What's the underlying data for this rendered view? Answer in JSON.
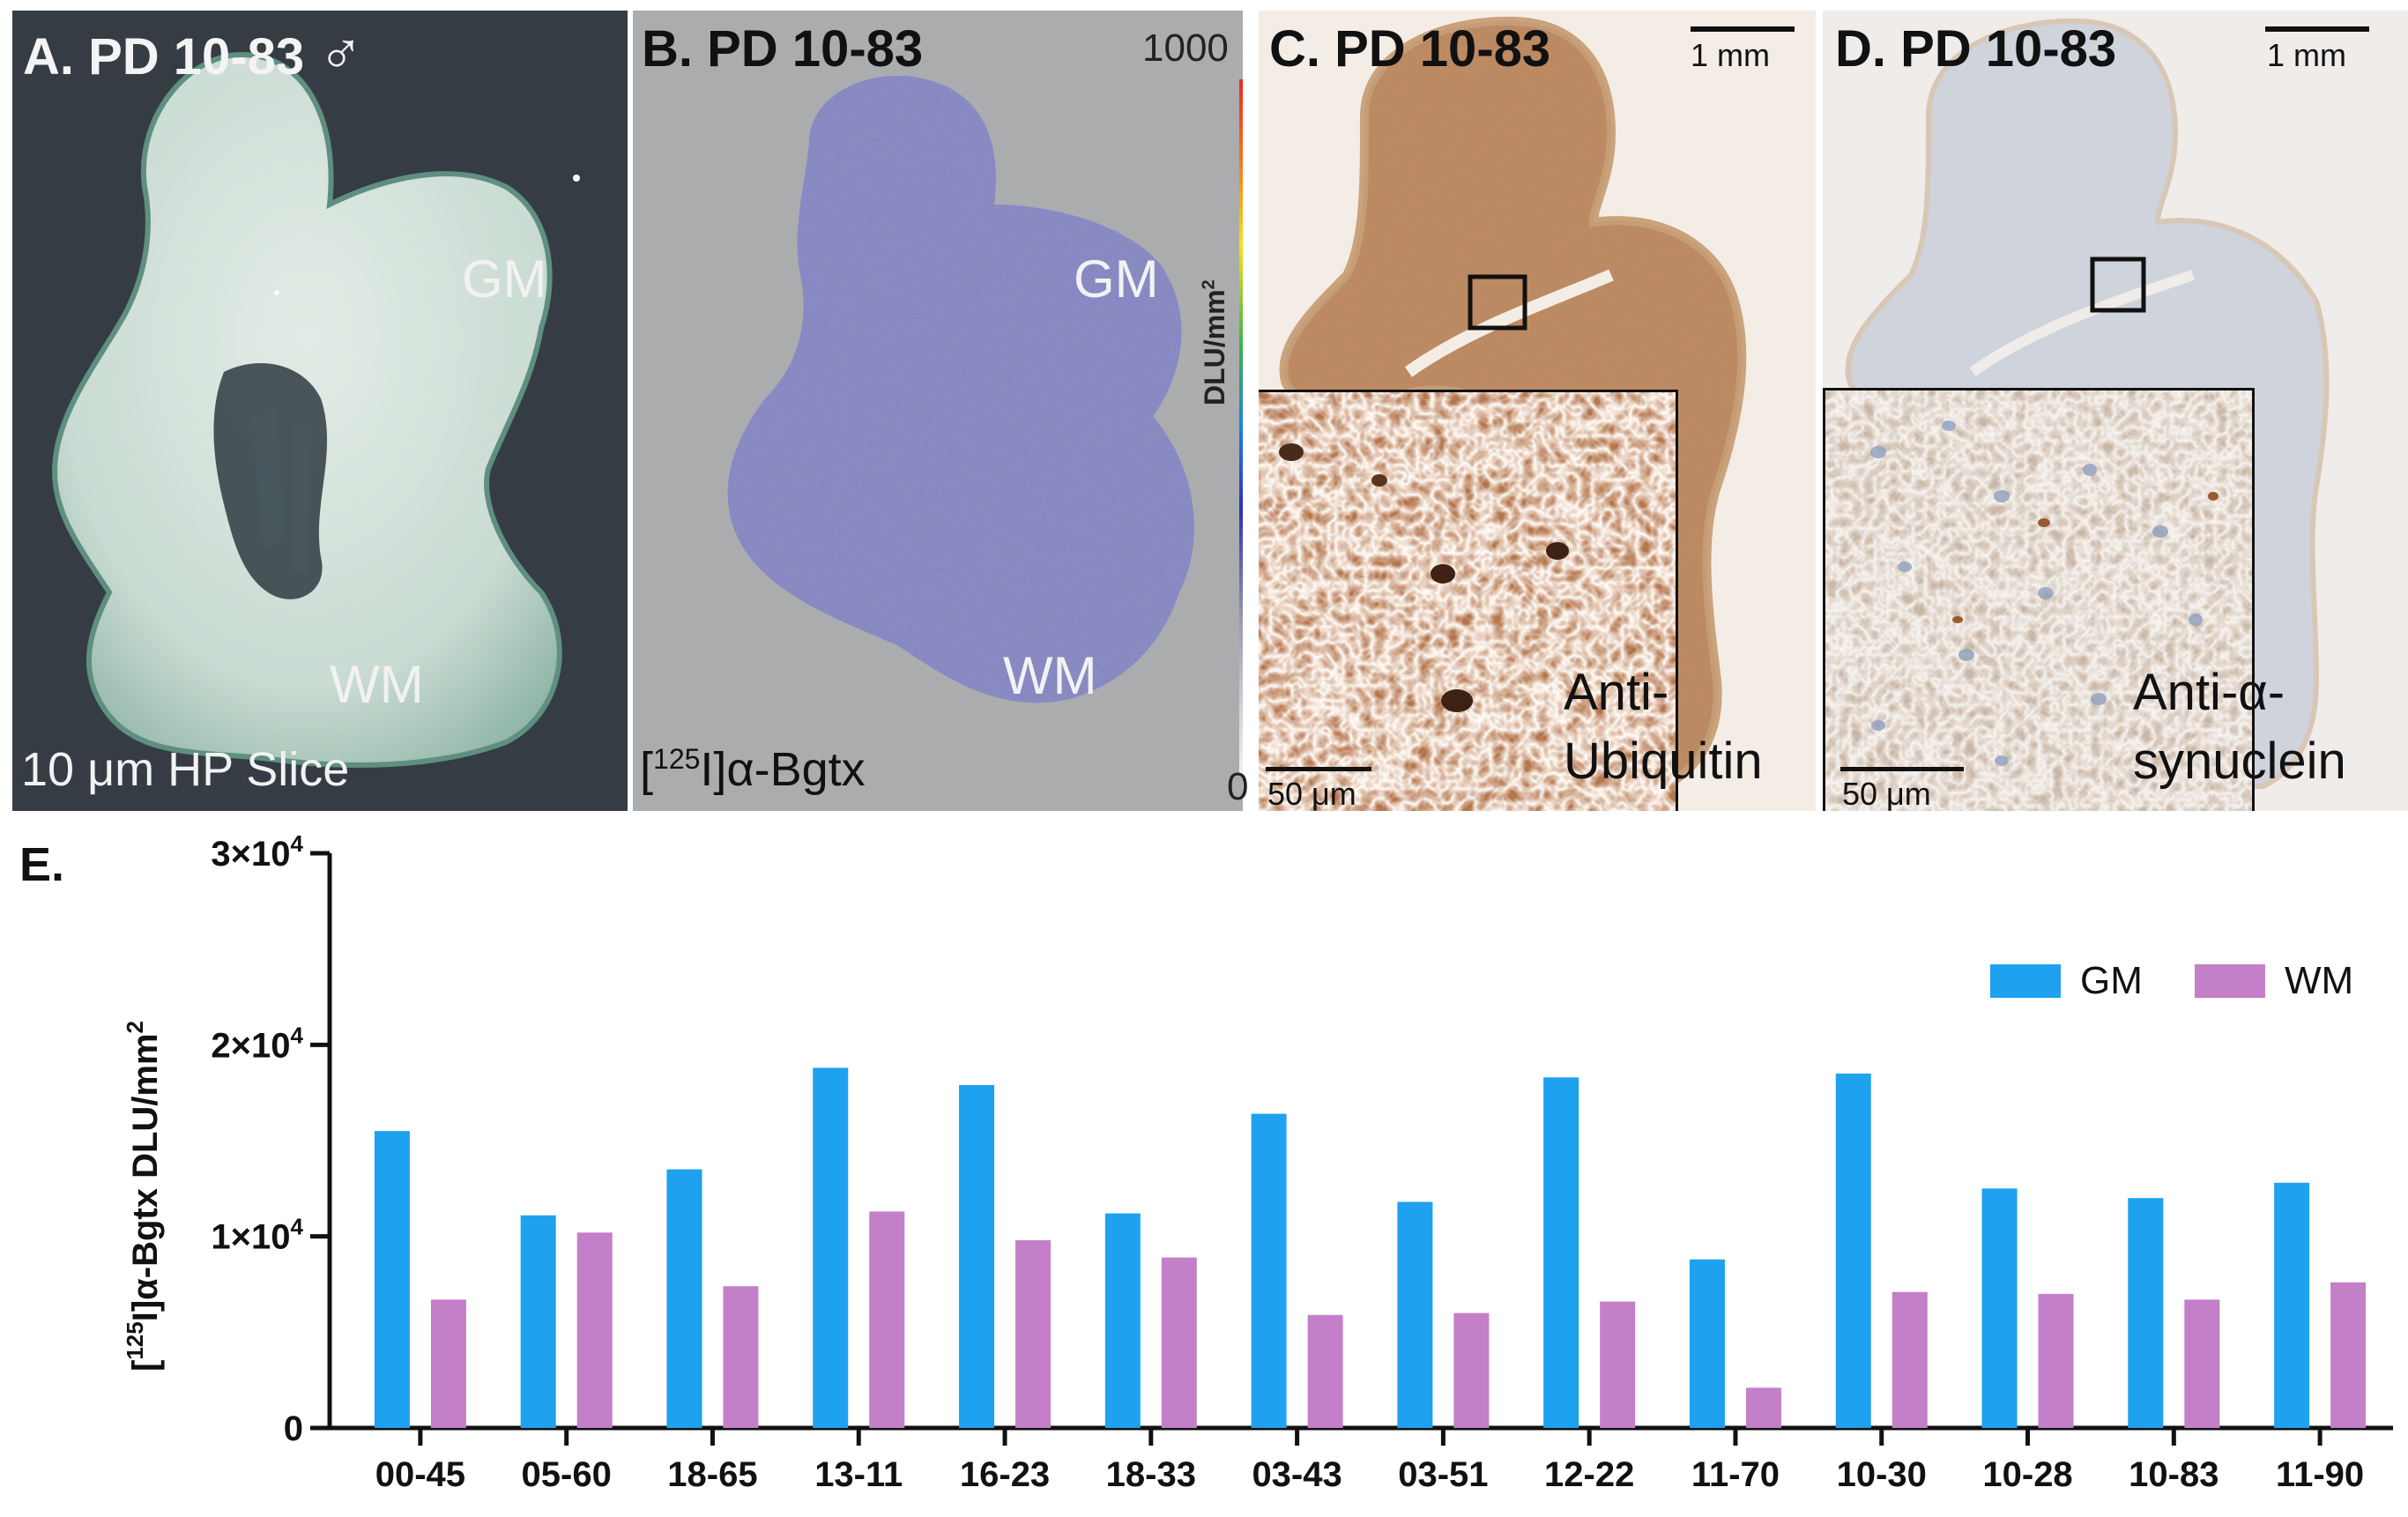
{
  "panels": {
    "a": {
      "title": "A. PD 10-83",
      "sex_symbol": "♂",
      "region_gm": "GM",
      "region_wm": "WM",
      "caption": "10 μm HP Slice"
    },
    "b": {
      "title": "B. PD 10-83",
      "region_gm": "GM",
      "region_wm": "WM",
      "radioligand_sup": "125",
      "radioligand_pre": "[",
      "radioligand_post": "I]α-Bgtx",
      "colorbar_max": "1000",
      "colorbar_min": "0",
      "colorbar_label": "DLU/mm",
      "colorbar_label_sup": "2"
    },
    "c": {
      "title": "C. PD 10-83",
      "scale_main": "1 mm",
      "scale_inset": "50 μm",
      "stain_line1": "Anti-",
      "stain_line2": "Ubiquitin"
    },
    "d": {
      "title": "D. PD 10-83",
      "scale_main": "1 mm",
      "scale_inset": "50 μm",
      "stain_line1": "Anti-α-",
      "stain_line2": "synuclein"
    }
  },
  "colors": {
    "gm": "#1ea1ef",
    "wm": "#c47fc9",
    "slide_bg": "#353c44",
    "autorad_bg": "#a7a9ab",
    "autorad_signal": "#3a3ad6",
    "brown_stain": "#b47a52",
    "blue_counterstain": "#aab3c4"
  },
  "chart_data": {
    "type": "bar",
    "panel_label": "E.",
    "categories": [
      "00-45",
      "05-60",
      "18-65",
      "13-11",
      "16-23",
      "18-33",
      "03-43",
      "03-51",
      "12-22",
      "11-70",
      "10-30",
      "10-28",
      "10-83",
      "11-90"
    ],
    "series": [
      {
        "name": "GM",
        "values": [
          15500,
          11100,
          13500,
          18800,
          17900,
          11200,
          16400,
          11800,
          18300,
          8800,
          18500,
          12500,
          12000,
          12800
        ]
      },
      {
        "name": "WM",
        "values": [
          6700,
          10200,
          7400,
          11300,
          9800,
          8900,
          5900,
          6000,
          6600,
          2100,
          7100,
          7000,
          6700,
          7600
        ]
      }
    ],
    "ylim": [
      0,
      30000
    ],
    "yticks": [
      {
        "value": 0,
        "mantissa": "0",
        "exp": ""
      },
      {
        "value": 10000,
        "mantissa": "1×10",
        "exp": "4"
      },
      {
        "value": 20000,
        "mantissa": "2×10",
        "exp": "4"
      },
      {
        "value": 30000,
        "mantissa": "3×10",
        "exp": "4"
      }
    ],
    "ylabel_pre": "[",
    "ylabel_sup": "125",
    "ylabel_mid": "I]α-Bgtx DLU/mm",
    "ylabel_sup2": "2",
    "xlabel": "",
    "legend_position": "top-right"
  }
}
